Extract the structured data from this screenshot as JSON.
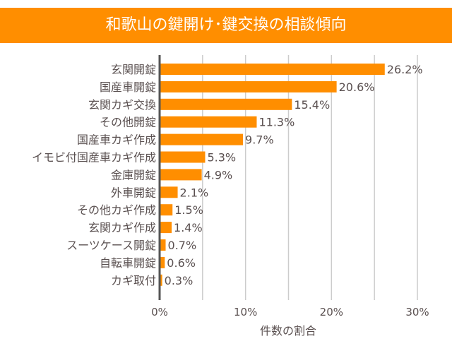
{
  "chart_data": {
    "type": "bar",
    "orientation": "horizontal",
    "title": "和歌山の鍵開け･鍵交換の相談傾向",
    "xlabel": "件数の割合",
    "ylabel": "",
    "xlim": [
      0,
      30
    ],
    "xticks": [
      "0%",
      "10%",
      "20%",
      "30%"
    ],
    "grid": true,
    "bar_color": "#FF8E00",
    "categories": [
      "玄関開錠",
      "国産車開錠",
      "玄関カギ交換",
      "その他開錠",
      "国産車カギ作成",
      "イモビ付国産車カギ作成",
      "金庫開錠",
      "外車開錠",
      "その他カギ作成",
      "玄関カギ作成",
      "スーツケース開錠",
      "自転車開錠",
      "カギ取付"
    ],
    "values": [
      26.2,
      20.6,
      15.4,
      11.3,
      9.7,
      5.3,
      4.9,
      2.1,
      1.5,
      1.4,
      0.7,
      0.6,
      0.3
    ],
    "value_labels": [
      "26.2%",
      "20.6%",
      "15.4%",
      "11.3%",
      "9.7%",
      "5.3%",
      "4.9%",
      "2.1%",
      "1.5%",
      "1.4%",
      "0.7%",
      "0.6%",
      "0.3%"
    ]
  }
}
